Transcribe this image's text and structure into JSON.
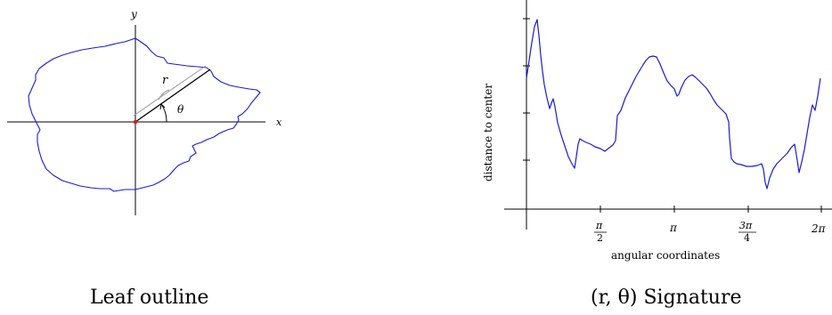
{
  "left_panel": {
    "caption": "Leaf outline",
    "x_label": "x",
    "y_label": "y",
    "r_label": "r",
    "theta_label": "θ",
    "outline_color": "#1a1adb",
    "origin_color": "#d42020"
  },
  "right_panel": {
    "caption": "(r, θ) Signature",
    "y_axis_title": "distance to center",
    "x_axis_title": "angular coordinates",
    "tick_labels": {
      "pi_over_2_num": "π",
      "pi_over_2_den": "2",
      "pi": "π",
      "three_pi_over_4_num": "3π",
      "three_pi_over_4_den": "4",
      "two_pi": "2π"
    },
    "signature_color": "#1a1adb"
  }
}
